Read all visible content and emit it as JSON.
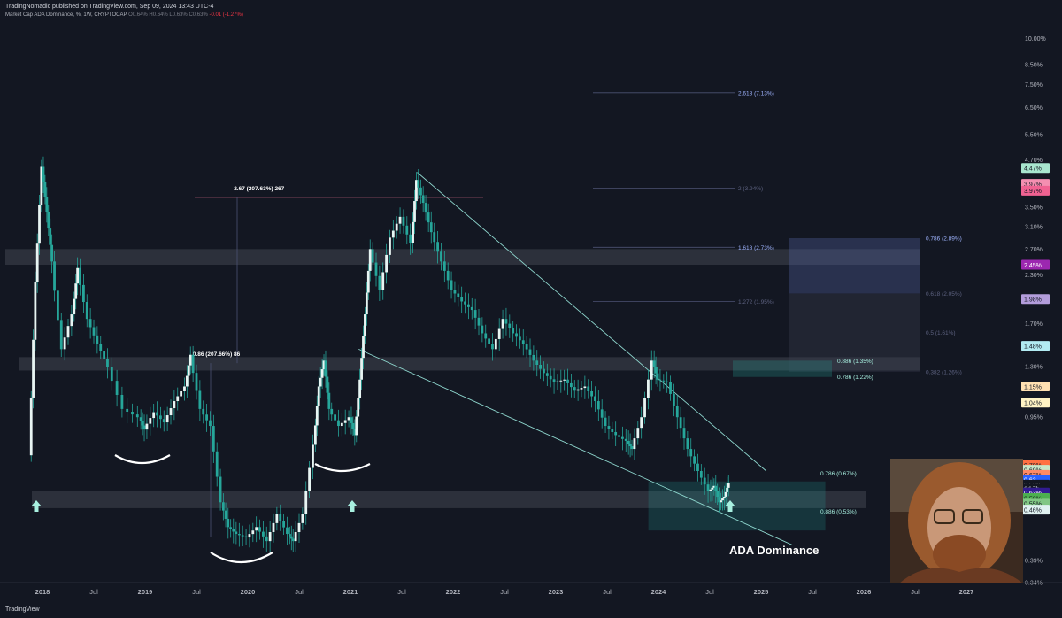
{
  "header": {
    "publisher": "TradingNomadic published on TradingView.com, Sep 09, 2024 13:43 UTC-4",
    "symbol": "Market Cap ADA Dominance, %, 1W, CRYPTOCAP",
    "ohlc": "O0.64% H0.64% L0.63% C0.63%",
    "change": "-0.01 (-1.27%)",
    "axis_unit": "%"
  },
  "footer": {
    "logo": "TradingView"
  },
  "colors": {
    "background": "#131722",
    "candle": "#26a69a",
    "pattern_white": "#ffffff",
    "wedge_line": "#8fd8cf",
    "fib_line": "#4c5273",
    "zone": "rgba(120,123,134,0.25)",
    "pink_line": "#e26a8a",
    "accent_arrow": "#a8f0e0"
  },
  "chart_data": {
    "type": "line",
    "title": "",
    "xlabel": "",
    "ylabel": "",
    "yscale": "log",
    "ylim": [
      0.34,
      11.0
    ],
    "y_ticks": [
      {
        "v": 10.0,
        "label": "10.00%"
      },
      {
        "v": 8.5,
        "label": "8.50%"
      },
      {
        "v": 7.5,
        "label": "7.50%"
      },
      {
        "v": 6.5,
        "label": "6.50%"
      },
      {
        "v": 5.5,
        "label": "5.50%"
      },
      {
        "v": 4.7,
        "label": "4.70%"
      },
      {
        "v": 3.5,
        "label": "3.50%"
      },
      {
        "v": 3.1,
        "label": "3.10%"
      },
      {
        "v": 2.7,
        "label": "2.70%"
      },
      {
        "v": 2.3,
        "label": "2.30%"
      },
      {
        "v": 1.7,
        "label": "1.70%"
      },
      {
        "v": 1.3,
        "label": "1.30%"
      },
      {
        "v": 0.95,
        "label": "0.95%"
      },
      {
        "v": 0.39,
        "label": "0.39%"
      },
      {
        "v": 0.34,
        "label": "0.34%"
      }
    ],
    "x_ticks": [
      "2018",
      "Jul",
      "2019",
      "Jul",
      "2020",
      "Jul",
      "2021",
      "Jul",
      "2022",
      "Jul",
      "2023",
      "Jul",
      "2024",
      "Jul",
      "2025",
      "Jul",
      "2026",
      "Jul",
      "2027"
    ],
    "x_tick_dates": [
      2018.0,
      2018.5,
      2019.0,
      2019.5,
      2020.0,
      2020.5,
      2021.0,
      2021.5,
      2022.0,
      2022.5,
      2023.0,
      2023.5,
      2024.0,
      2024.5,
      2025.0,
      2025.5,
      2026.0,
      2026.5,
      2027.0
    ],
    "series": [
      {
        "values": [
          [
            2017.88,
            0.75
          ],
          [
            2017.94,
            2.2
          ],
          [
            2018.0,
            4.5
          ],
          [
            2018.05,
            3.4
          ],
          [
            2018.1,
            2.5
          ],
          [
            2018.2,
            1.45
          ],
          [
            2018.3,
            1.8
          ],
          [
            2018.35,
            2.4
          ],
          [
            2018.45,
            1.75
          ],
          [
            2018.55,
            1.5
          ],
          [
            2018.65,
            1.3
          ],
          [
            2018.8,
            1.0
          ],
          [
            2018.95,
            0.95
          ],
          [
            2019.0,
            0.88
          ],
          [
            2019.1,
            0.98
          ],
          [
            2019.2,
            0.92
          ],
          [
            2019.3,
            1.05
          ],
          [
            2019.4,
            1.15
          ],
          [
            2019.45,
            1.4
          ],
          [
            2019.55,
            1.0
          ],
          [
            2019.65,
            0.9
          ],
          [
            2019.75,
            0.56
          ],
          [
            2019.82,
            0.48
          ],
          [
            2019.9,
            0.46
          ],
          [
            2020.0,
            0.45
          ],
          [
            2020.1,
            0.48
          ],
          [
            2020.2,
            0.44
          ],
          [
            2020.3,
            0.52
          ],
          [
            2020.4,
            0.46
          ],
          [
            2020.45,
            0.44
          ],
          [
            2020.55,
            0.52
          ],
          [
            2020.65,
            0.8
          ],
          [
            2020.7,
            1.15
          ],
          [
            2020.75,
            1.35
          ],
          [
            2020.8,
            1.0
          ],
          [
            2020.9,
            0.9
          ],
          [
            2021.0,
            0.95
          ],
          [
            2021.05,
            0.85
          ],
          [
            2021.1,
            1.2
          ],
          [
            2021.15,
            1.8
          ],
          [
            2021.2,
            2.7
          ],
          [
            2021.3,
            2.1
          ],
          [
            2021.4,
            2.9
          ],
          [
            2021.5,
            3.3
          ],
          [
            2021.6,
            2.8
          ],
          [
            2021.65,
            4.15
          ],
          [
            2021.72,
            3.6
          ],
          [
            2021.8,
            3.0
          ],
          [
            2021.9,
            2.5
          ],
          [
            2022.0,
            2.1
          ],
          [
            2022.1,
            1.95
          ],
          [
            2022.2,
            1.85
          ],
          [
            2022.3,
            1.6
          ],
          [
            2022.4,
            1.45
          ],
          [
            2022.5,
            1.75
          ],
          [
            2022.6,
            1.6
          ],
          [
            2022.7,
            1.5
          ],
          [
            2022.8,
            1.35
          ],
          [
            2022.9,
            1.25
          ],
          [
            2023.0,
            1.18
          ],
          [
            2023.1,
            1.2
          ],
          [
            2023.2,
            1.12
          ],
          [
            2023.3,
            1.15
          ],
          [
            2023.4,
            1.05
          ],
          [
            2023.5,
            0.9
          ],
          [
            2023.6,
            0.85
          ],
          [
            2023.7,
            0.82
          ],
          [
            2023.75,
            0.78
          ],
          [
            2023.85,
            0.95
          ],
          [
            2023.95,
            1.35
          ],
          [
            2024.0,
            1.2
          ],
          [
            2024.1,
            1.18
          ],
          [
            2024.2,
            0.95
          ],
          [
            2024.3,
            0.78
          ],
          [
            2024.4,
            0.68
          ],
          [
            2024.5,
            0.6
          ],
          [
            2024.55,
            0.62
          ],
          [
            2024.6,
            0.56
          ],
          [
            2024.65,
            0.58
          ],
          [
            2024.69,
            0.63
          ]
        ]
      }
    ],
    "zones": [
      {
        "y1": 2.45,
        "y2": 2.7
      },
      {
        "y1": 1.27,
        "y2": 1.38
      },
      {
        "y1": 0.54,
        "y2": 0.6
      }
    ],
    "wedge_lines": [
      {
        "x1": 2021.65,
        "y1": 4.35,
        "x2": 2025.05,
        "y2": 0.68
      },
      {
        "x1": 2021.08,
        "y1": 1.45,
        "x2": 2025.3,
        "y2": 0.43
      }
    ],
    "fib_box": {
      "x1": 2024.85,
      "x2": 2025.45,
      "y1": 0.47,
      "y2": 0.61,
      "labels": [
        {
          "text": "0.786 (0.67%)",
          "v": 0.67
        },
        {
          "text": "0.886 (0.53%)",
          "v": 0.53
        }
      ]
    },
    "fib_levels_left": [
      {
        "text": "2.618 (7.13%)",
        "v": 7.13,
        "bright": true
      },
      {
        "text": "2 (3.94%)",
        "v": 3.94,
        "bright": false
      },
      {
        "text": "1.618 (2.73%)",
        "v": 2.73,
        "bright": true
      },
      {
        "text": "1.272 (1.95%)",
        "v": 1.95,
        "bright": false
      }
    ],
    "fib_levels_right": [
      {
        "text": "0.786 (2.89%)",
        "v": 2.89,
        "bright": true
      },
      {
        "text": "0.618 (2.05%)",
        "v": 2.05,
        "bright": false
      },
      {
        "text": "0.5 (1.61%)",
        "v": 1.61,
        "bright": false
      },
      {
        "text": "0.382 (1.26%)",
        "v": 1.26,
        "bright": false
      }
    ],
    "mid_fib": [
      {
        "text": "0.886 (1.35%)",
        "v": 1.35
      },
      {
        "text": "0.786 (1.22%)",
        "v": 1.22
      }
    ],
    "measure_labels": [
      {
        "text": "2.67 (207.63%) 267",
        "x": 2019.95,
        "v": 3.98
      },
      {
        "text": "0.86 (207.66%) 86",
        "x": 2019.55,
        "v": 1.42
      }
    ],
    "annotation": "ADA Dominance",
    "price_tags": [
      {
        "text": "4.47%",
        "v": 4.47,
        "bg": "#a8e6cf",
        "fg": "#131722"
      },
      {
        "text": "3.97%",
        "v": 4.05,
        "bg": "#f48fb1",
        "fg": "#131722"
      },
      {
        "text": "3.97%",
        "v": 3.88,
        "bg": "#f06292",
        "fg": "#131722"
      },
      {
        "text": "2.45%",
        "v": 2.45,
        "bg": "#9c27b0",
        "fg": "#ffffff"
      },
      {
        "text": "1.98%",
        "v": 1.98,
        "bg": "#b39ddb",
        "fg": "#131722"
      },
      {
        "text": "1.48%",
        "v": 1.48,
        "bg": "#b2ebf2",
        "fg": "#131722"
      },
      {
        "text": "1.15%",
        "v": 1.15,
        "bg": "#ffe0b2",
        "fg": "#131722"
      },
      {
        "text": "1.04%",
        "v": 1.04,
        "bg": "#fff3c4",
        "fg": "#131722"
      },
      {
        "text": "0.70%",
        "v": 0.705,
        "bg": "#ff7043",
        "fg": "#131722"
      },
      {
        "text": "0.69%",
        "v": 0.685,
        "bg": "#c8e6c9",
        "fg": "#131722"
      },
      {
        "text": "0.67%",
        "v": 0.664,
        "bg": "#ff8a65",
        "fg": "#131722"
      },
      {
        "text": "0.63",
        "v": 0.645,
        "bg": "#2962ff",
        "fg": "#ffffff"
      },
      {
        "text": "0.63%",
        "v": 0.625,
        "bg": "#131722",
        "fg": "#d1d4dc"
      },
      {
        "text": "6d 7h",
        "v": 0.61,
        "bg": "#131722",
        "fg": "#d1d4dc"
      },
      {
        "text": "0.63%",
        "v": 0.595,
        "bg": "#311b92",
        "fg": "#ffffff"
      },
      {
        "text": "0.58%",
        "v": 0.575,
        "bg": "#4caf50",
        "fg": "#131722"
      },
      {
        "text": "0.55%",
        "v": 0.555,
        "bg": "#81c784",
        "fg": "#131722"
      },
      {
        "text": "0.46%",
        "v": 0.535,
        "bg": "#e0f2f1",
        "fg": "#131722"
      }
    ]
  }
}
